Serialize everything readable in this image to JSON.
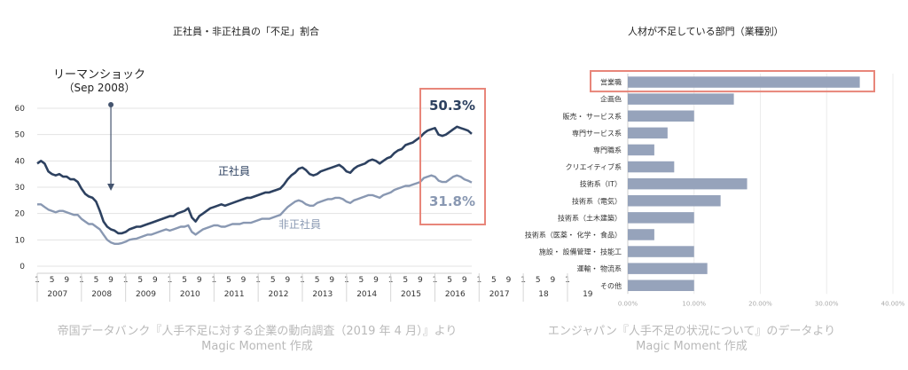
{
  "chart_data": [
    {
      "type": "line",
      "title": "正社員・非正社員の「不足」割合",
      "ylim": [
        0,
        60
      ],
      "yticks": [
        "0",
        "10",
        "20",
        "30",
        "40",
        "50",
        "60"
      ],
      "month_ticks": [
        "1",
        "5",
        "9",
        "1",
        "5",
        "9",
        "1",
        "5",
        "9",
        "1",
        "5",
        "9",
        "1",
        "5",
        "9",
        "1",
        "5",
        "9",
        "1",
        "5",
        "9",
        "1",
        "5",
        "9",
        "1",
        "5",
        "9",
        "1",
        "5",
        "9",
        "1",
        "5",
        "9",
        "1",
        "5",
        "9",
        "1"
      ],
      "year_labels": [
        "2007",
        "2008",
        "2009",
        "2010",
        "2011",
        "2012",
        "2013",
        "2014",
        "2015",
        "2016",
        "2017",
        "18",
        "19"
      ],
      "annotation": {
        "line1": "リーマンショック",
        "line2": "（Sep 2008）"
      },
      "series": [
        {
          "name": "正社員",
          "color": "#2d4160",
          "end_label": "50.3%",
          "values": [
            39,
            40,
            39,
            36,
            35,
            34.5,
            35,
            34,
            34,
            33,
            33,
            32,
            29.5,
            27.5,
            26.5,
            26,
            24.5,
            21,
            17,
            15,
            14,
            13.5,
            12.5,
            12.5,
            13,
            14,
            14.5,
            15,
            15,
            15.5,
            16,
            16.5,
            17,
            17.5,
            18,
            18.5,
            19,
            19,
            20,
            20.5,
            21,
            22,
            18.5,
            17,
            19,
            20,
            21,
            22,
            22.5,
            23,
            23.5,
            23,
            23.5,
            24,
            24.5,
            25,
            25.5,
            26,
            26,
            26.5,
            27,
            27.5,
            28,
            28,
            28.5,
            29,
            29.5,
            31,
            33,
            34.5,
            35.5,
            37,
            37.5,
            36.5,
            35,
            34.5,
            35,
            36,
            36.5,
            37,
            37.5,
            38,
            38.5,
            37.5,
            36,
            35.5,
            37,
            38,
            38.5,
            39,
            40,
            40.5,
            40,
            39,
            40,
            41,
            41.5,
            43,
            44,
            44.5,
            46,
            46.5,
            47,
            48,
            49,
            50.5,
            51.5,
            52,
            52.5,
            50,
            49.5,
            50,
            51,
            52,
            53,
            52.5,
            52,
            51.5,
            50.3
          ]
        },
        {
          "name": "非正社員",
          "color": "#8998b2",
          "end_label": "31.8%",
          "values": [
            23.5,
            23.5,
            22.5,
            21.5,
            21,
            20.5,
            21,
            21,
            20.5,
            20,
            19.5,
            19.5,
            18,
            17,
            16,
            16,
            15,
            14,
            12,
            10,
            9,
            8.5,
            8.5,
            8.8,
            9.3,
            10,
            10.3,
            10.5,
            11,
            11.5,
            12,
            12,
            12.5,
            13,
            13.5,
            14,
            13.5,
            14,
            14.5,
            15,
            15,
            15.5,
            13,
            12,
            13,
            14,
            14.5,
            15,
            15.5,
            15.5,
            15,
            15,
            15.5,
            16,
            16,
            16,
            16.5,
            16.5,
            16.5,
            17,
            17.5,
            18,
            18,
            18,
            18.5,
            19,
            19.5,
            21,
            22.5,
            23.5,
            24.5,
            25,
            24.5,
            23.5,
            23,
            23,
            24,
            24.5,
            25,
            25.5,
            25.5,
            26,
            26,
            25.5,
            24.5,
            24,
            25,
            25.5,
            26,
            26.5,
            27,
            27,
            26.5,
            26,
            27,
            27.5,
            28,
            29,
            29.5,
            30,
            30.5,
            30.5,
            31,
            31.5,
            32,
            33.5,
            34,
            34.5,
            34,
            32.5,
            32,
            32,
            33,
            34,
            34.5,
            34,
            33,
            32.5,
            31.8
          ]
        }
      ],
      "highlight_color": "#e8867a",
      "source_line1": "帝国データバンク『人手不足に対する企業の動向調査（2019 年 4 月）』より",
      "source_line2": "Magic Moment 作成"
    },
    {
      "type": "bar",
      "title": "人材が不足している部門（業種別）",
      "categories": [
        "営業職",
        "企画色",
        "販売・ サービス系",
        "専門サービス系",
        "専門職系",
        "クリエイティブ系",
        "技術系（IT）",
        "技術系（電気）",
        "技術系（土木建築）",
        "技術系（医薬・ 化学・ 食品）",
        "施設・ 設備管理・ 技能工",
        "運輸・ 物流系",
        "その他"
      ],
      "values": [
        35,
        16,
        10,
        6,
        4,
        7,
        18,
        14,
        10,
        4,
        10,
        12,
        10
      ],
      "xlim": [
        0,
        40
      ],
      "xticks": [
        "0.00%",
        "10.00%",
        "20.00%",
        "30.00%",
        "40.00%"
      ],
      "bar_color": "#96a3bb",
      "highlight_color": "#e8867a",
      "source_line1": "エンジャパン『人手不足の状況について』のデータより",
      "source_line2": "Magic Moment 作成"
    }
  ]
}
